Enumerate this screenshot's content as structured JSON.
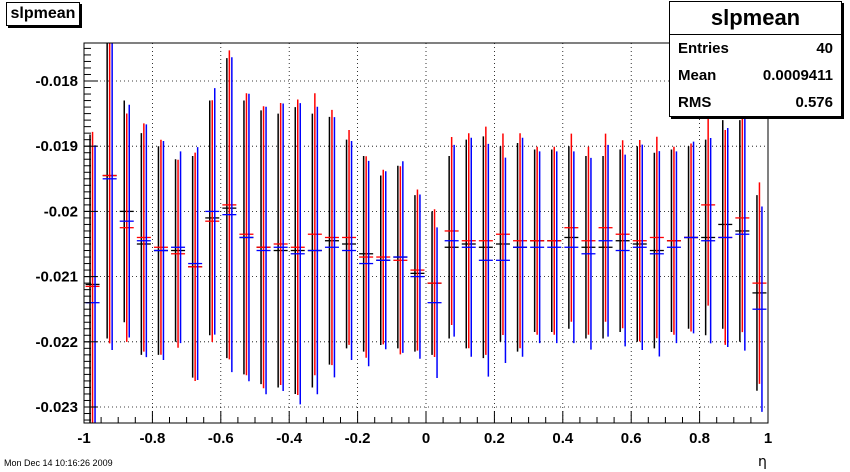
{
  "histogram": {
    "title": "slpmean"
  },
  "stats": {
    "name": "slpmean",
    "rows": [
      {
        "label": "Entries",
        "value": "40"
      },
      {
        "label": "Mean",
        "value": "0.0009411"
      },
      {
        "label": "RMS",
        "value": "0.576"
      }
    ]
  },
  "timestamp": "Mon Dec 14 10:16:26 2009",
  "chart_data": {
    "type": "scatter",
    "title": "slpmean",
    "xlabel": "η",
    "ylabel": "",
    "xlim": [
      -1,
      1
    ],
    "ylim": [
      -0.0233,
      -0.0173
    ],
    "grid": true,
    "x_ticks": [
      -1,
      -0.8,
      -0.6,
      -0.4,
      -0.2,
      0,
      0.2,
      0.4,
      0.6,
      0.8,
      1
    ],
    "x_tick_labels": [
      "-1",
      "-0.8",
      "-0.6",
      "-0.4",
      "-0.2",
      "0",
      "0.2",
      "0.4",
      "0.6",
      "0.8",
      "1"
    ],
    "y_ticks": [
      -0.023,
      -0.022,
      -0.021,
      -0.02,
      -0.019,
      -0.018
    ],
    "y_tick_labels": [
      "-0.023",
      "-0.022",
      "-0.021",
      "-0.02",
      "-0.019",
      "-0.018"
    ],
    "x": [
      -0.975,
      -0.925,
      -0.875,
      -0.825,
      -0.775,
      -0.725,
      -0.675,
      -0.625,
      -0.575,
      -0.525,
      -0.475,
      -0.425,
      -0.375,
      -0.325,
      -0.275,
      -0.225,
      -0.175,
      -0.125,
      -0.075,
      -0.025,
      0.025,
      0.075,
      0.125,
      0.175,
      0.225,
      0.275,
      0.325,
      0.375,
      0.425,
      0.475,
      0.525,
      0.575,
      0.625,
      0.675,
      0.725,
      0.775,
      0.825,
      0.875,
      0.925,
      0.975
    ],
    "series": [
      {
        "color": "#000000",
        "values": [
          -0.02112,
          -0.01945,
          -0.02,
          -0.0205,
          -0.0206,
          -0.0206,
          -0.02085,
          -0.0201,
          -0.01995,
          -0.0204,
          -0.02055,
          -0.0206,
          -0.0206,
          -0.0206,
          -0.02045,
          -0.0205,
          -0.02065,
          -0.02075,
          -0.0207,
          -0.02095,
          -0.0211,
          -0.02055,
          -0.0205,
          -0.02055,
          -0.0205,
          -0.02055,
          -0.02045,
          -0.02045,
          -0.0204,
          -0.02055,
          -0.02055,
          -0.02045,
          -0.0205,
          -0.0206,
          -0.02045,
          -0.0204,
          -0.0204,
          -0.0202,
          -0.0203,
          -0.02125
        ],
        "errors": [
          0.0023,
          0.0025,
          0.0017,
          0.0017,
          0.0016,
          0.0014,
          0.0017,
          0.0018,
          0.0023,
          0.0021,
          0.0021,
          0.0021,
          0.0022,
          0.0021,
          0.0019,
          0.0016,
          0.0015,
          0.0013,
          0.0014,
          0.0012,
          0.0011,
          0.0014,
          0.0016,
          0.0017,
          0.0015,
          0.0016,
          0.0014,
          0.0014,
          0.0014,
          0.0014,
          0.0014,
          0.0014,
          0.0015,
          0.0015,
          0.0014,
          0.0014,
          0.0015,
          0.0016,
          0.0017,
          0.0015
        ]
      },
      {
        "color": "#ff0000",
        "values": [
          -0.02115,
          -0.01945,
          -0.02025,
          -0.0204,
          -0.02055,
          -0.02065,
          -0.02085,
          -0.02015,
          -0.0199,
          -0.02035,
          -0.02055,
          -0.0205,
          -0.02055,
          -0.02035,
          -0.0204,
          -0.0204,
          -0.0207,
          -0.0207,
          -0.02075,
          -0.0209,
          -0.0211,
          -0.0203,
          -0.02045,
          -0.02045,
          -0.02035,
          -0.02045,
          -0.02045,
          -0.02045,
          -0.02025,
          -0.02045,
          -0.02025,
          -0.02035,
          -0.02045,
          -0.0204,
          -0.02045,
          -0.0204,
          -0.0199,
          -0.0204,
          -0.0201,
          -0.0211
        ]
      },
      {
        "color": "#0000ff",
        "values": [
          -0.0214,
          -0.0195,
          -0.02015,
          -0.02045,
          -0.0206,
          -0.02055,
          -0.0208,
          -0.02,
          -0.02005,
          -0.0204,
          -0.0206,
          -0.02055,
          -0.02065,
          -0.0206,
          -0.02055,
          -0.0206,
          -0.0208,
          -0.02075,
          -0.0207,
          -0.021,
          -0.0214,
          -0.02045,
          -0.02055,
          -0.02075,
          -0.02075,
          -0.02055,
          -0.02055,
          -0.02055,
          -0.02055,
          -0.02065,
          -0.02045,
          -0.0206,
          -0.02055,
          -0.02065,
          -0.02055,
          -0.0204,
          -0.02045,
          -0.0204,
          -0.02035,
          -0.0215
        ]
      }
    ]
  }
}
